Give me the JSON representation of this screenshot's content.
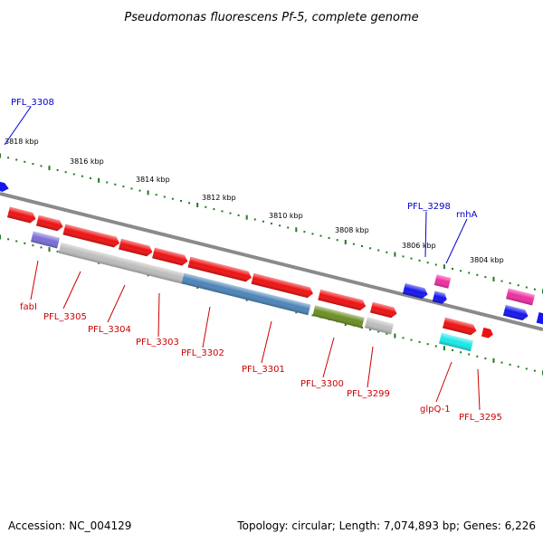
{
  "title": "Pseudomonas fluorescens Pf-5, complete genome",
  "footer": {
    "accession": "Accession: NC_004129",
    "topology": "Topology: circular; Length: 7,074,893 bp; Genes: 6,226"
  },
  "scale_ticks": [
    "3818 kbp",
    "3816 kbp",
    "3814 kbp",
    "3812 kbp",
    "3810 kbp",
    "3808 kbp",
    "3806 kbp",
    "3804 kbp"
  ],
  "colors": {
    "backbone": "#8a8a8a",
    "tick_green": "#1f7a1f",
    "label_blue": "#0000cc",
    "label_red": "#cc0000",
    "gene_red": "#ee1111",
    "gene_blue": "#1515ee",
    "gene_magenta": "#ee2ea0",
    "gene_grey": "#bdbdbd",
    "gene_steelblue": "#4c84b8",
    "gene_olive": "#6b8e23",
    "gene_cyan": "#19e8e8",
    "gene_lavender": "#7a6ed6"
  },
  "labels_top": [
    "PFL_3308",
    "PFL_3298",
    "rnhA"
  ],
  "labels_bottom": [
    "fabI",
    "PFL_3305",
    "PFL_3304",
    "PFL_3303",
    "PFL_3302",
    "PFL_3301",
    "PFL_3300",
    "PFL_3299",
    "glpQ-1",
    "PFL_3295"
  ]
}
